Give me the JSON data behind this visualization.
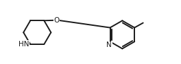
{
  "background_color": "#ffffff",
  "line_color": "#1a1a1a",
  "line_width": 1.4,
  "font_size": 7.5,
  "atoms": {
    "HN_label": "HN",
    "O_label": "O",
    "N_label": "N",
    "CH3_label": ""
  },
  "figsize": [
    2.64,
    0.94
  ],
  "dpi": 100,
  "xlim": [
    0,
    10.5
  ],
  "ylim": [
    0,
    3.75
  ]
}
